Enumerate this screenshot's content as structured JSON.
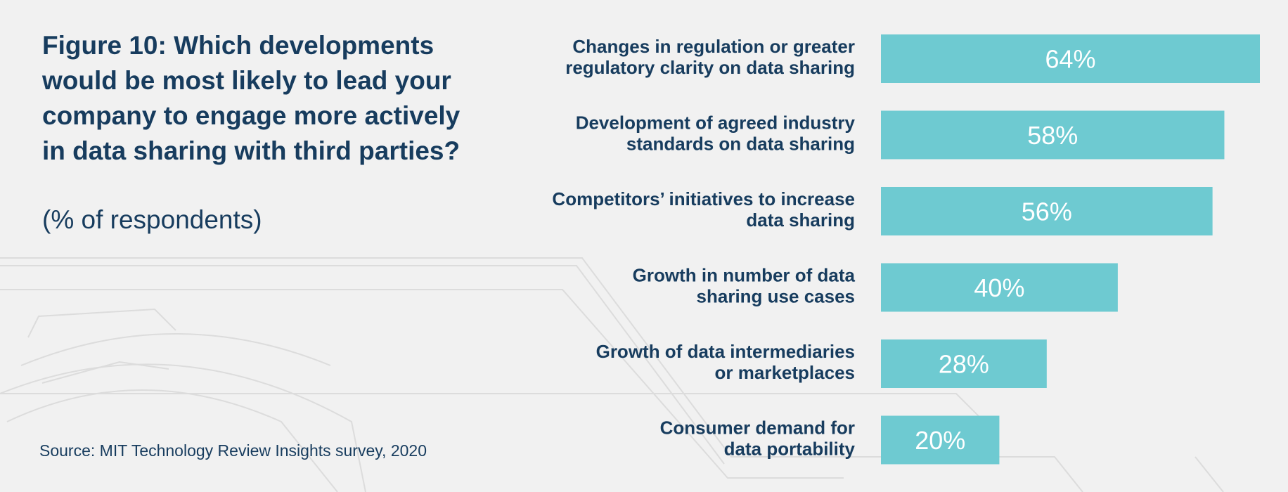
{
  "title": "Figure 10: Which developments would be most likely to lead your company to engage more actively in data sharing with third parties?",
  "subtitle": "(% of respondents)",
  "source": "Source: MIT Technology Review Insights survey, 2020",
  "colors": {
    "background": "#f1f1f1",
    "bar": "#6ecad1",
    "text": "#173c5e",
    "value_text": "#ffffff",
    "decor_lines": "#dcdcdc"
  },
  "chart_data": {
    "type": "bar",
    "orientation": "horizontal",
    "categories": [
      [
        "Changes in regulation or greater",
        "regulatory clarity on data sharing"
      ],
      [
        "Development of agreed industry",
        "standards on data sharing"
      ],
      [
        "Competitors’ initiatives to increase",
        "data sharing"
      ],
      [
        "Growth in number of data",
        "sharing use cases"
      ],
      [
        "Growth of data intermediaries",
        "or marketplaces"
      ],
      [
        "Consumer demand for",
        "data portability"
      ]
    ],
    "values": [
      64,
      58,
      56,
      40,
      28,
      20
    ],
    "value_labels": [
      "64%",
      "58%",
      "56%",
      "40%",
      "28%",
      "20%"
    ],
    "xlim": [
      0,
      64
    ],
    "grid": false,
    "legend": "none"
  }
}
